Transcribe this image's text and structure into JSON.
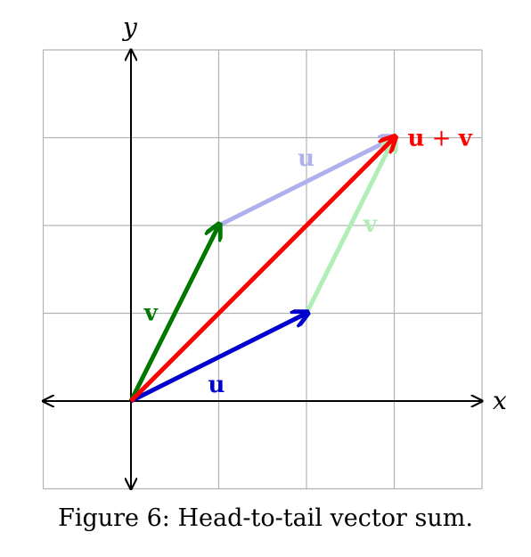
{
  "axes": {
    "x_label": "x",
    "y_label": "y",
    "x_range": [
      -1,
      4
    ],
    "y_range": [
      -1,
      4
    ]
  },
  "vectors": {
    "u": {
      "label": "u",
      "from": [
        0,
        0
      ],
      "to": [
        2,
        1
      ],
      "color": "#0000cc"
    },
    "v": {
      "label": "v",
      "from": [
        0,
        0
      ],
      "to": [
        1,
        2
      ],
      "color": "#007700"
    },
    "u_shifted": {
      "label": "u",
      "from": [
        1,
        2
      ],
      "to": [
        3,
        3
      ],
      "color": "#b0b0ee"
    },
    "v_shifted": {
      "label": "v",
      "from": [
        2,
        1
      ],
      "to": [
        3,
        3
      ],
      "color": "#b0eeb8"
    },
    "sum": {
      "label_u": "u",
      "label_plus": " + ",
      "label_v": "v",
      "from": [
        0,
        0
      ],
      "to": [
        3,
        3
      ],
      "color": "#ff0000"
    }
  },
  "caption": "Figure 6: Head-to-tail vector sum."
}
